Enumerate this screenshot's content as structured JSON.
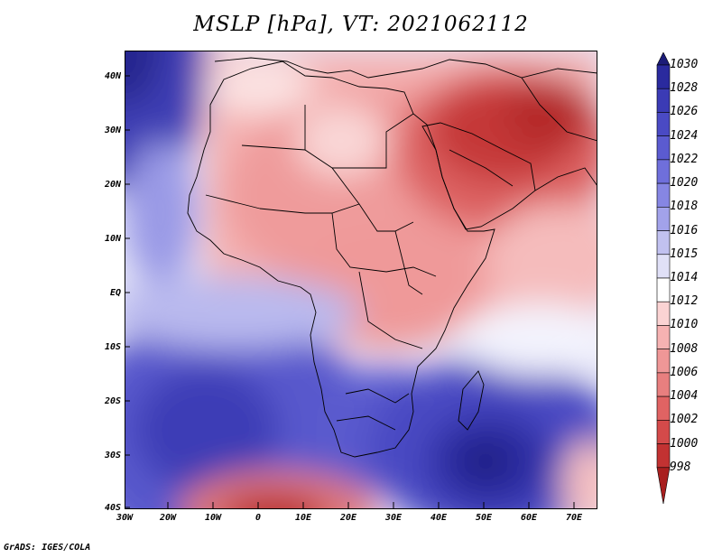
{
  "title": "MSLP [hPa], VT: 2021062112",
  "footer": "GrADS: IGES/COLA",
  "map": {
    "lat_labels": [
      "40N",
      "30N",
      "20N",
      "10N",
      "EQ",
      "10S",
      "20S",
      "30S",
      "40S"
    ],
    "lon_labels": [
      "30W",
      "20W",
      "10W",
      "0",
      "10E",
      "20E",
      "30E",
      "40E",
      "50E",
      "60E",
      "70E"
    ]
  },
  "colorbar": {
    "labels": [
      "1030",
      "1028",
      "1026",
      "1024",
      "1022",
      "1020",
      "1018",
      "1016",
      "1015",
      "1014",
      "1012",
      "1010",
      "1008",
      "1006",
      "1004",
      "1002",
      "1000",
      "998"
    ],
    "colors": [
      "#1c1c78",
      "#2a2a9e",
      "#3b3bb5",
      "#4a4ac4",
      "#5b5bd0",
      "#6f6fdb",
      "#8686e3",
      "#a2a2ea",
      "#c1c1f0",
      "#e0e0f7",
      "#ffffff",
      "#fbd3d3",
      "#f6b2b2",
      "#ef9797",
      "#e87f7f",
      "#e06363",
      "#d44a4a",
      "#c23232",
      "#a91f1f"
    ]
  },
  "colors": {
    "land_border": "#000000"
  }
}
